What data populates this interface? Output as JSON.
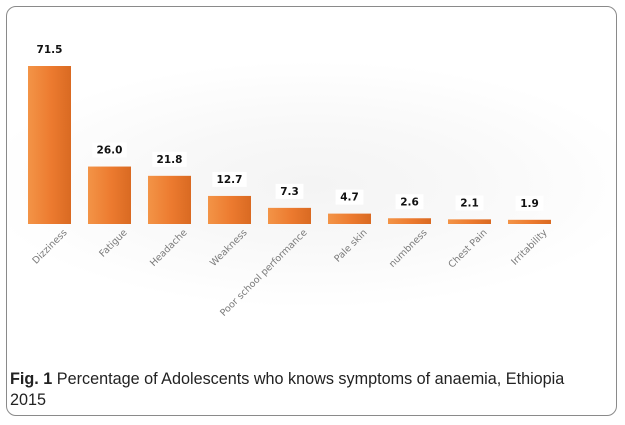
{
  "caption": {
    "fig_label": "Fig. 1",
    "text": "Percentage of Adolescents who knows symptoms of anaemia, Ethiopia 2015"
  },
  "chart_data": {
    "type": "bar",
    "categories": [
      "Dizziness",
      "Fatigue",
      "Headache",
      "Weakness",
      "Poor school performance",
      "Pale skin",
      "numbness",
      "Chest Pain",
      "Irritability"
    ],
    "values": [
      71.5,
      26.0,
      21.8,
      12.7,
      7.3,
      4.7,
      2.6,
      2.1,
      1.9
    ],
    "value_labels": [
      "71.5",
      "26.0",
      "21.8",
      "12.7",
      "7.3",
      "4.7",
      "2.6",
      "2.1",
      "1.9"
    ],
    "title": "",
    "xlabel": "",
    "ylabel": "",
    "ylim": [
      0,
      80
    ],
    "grid": false,
    "legend": "none",
    "bar_color": "#ec7a2f",
    "bar_color_light": "#f39447",
    "bar_color_dark": "#d96a22"
  }
}
